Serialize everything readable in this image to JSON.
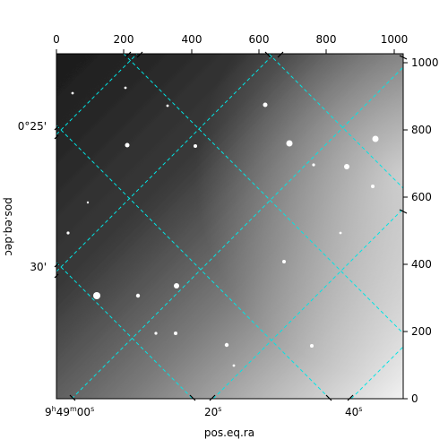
{
  "chart_data": {
    "type": "image",
    "xlabel": "pos.eq.ra",
    "ylabel": "pos.eq.dec",
    "pixel_axes": {
      "x_range": [
        0,
        1030
      ],
      "y_range": [
        0,
        1030
      ],
      "top_ticks": [
        0,
        200,
        400,
        600,
        800,
        1000
      ],
      "right_ticks": [
        0,
        200,
        400,
        600,
        800,
        1000
      ]
    },
    "world_ticks": {
      "bottom": [
        {
          "label_main": "9",
          "sup1": "h",
          "mid": "49",
          "sup2": "m",
          "end": "00",
          "sup3": "s"
        },
        {
          "label_main": "20",
          "sup1": "s",
          "mid": "",
          "sup2": "",
          "end": "",
          "sup3": ""
        },
        {
          "label_main": "40",
          "sup1": "s",
          "mid": "",
          "sup2": "",
          "end": "",
          "sup3": ""
        }
      ],
      "left": [
        "0°25'",
        "30'"
      ]
    },
    "grid": true,
    "grid_color": "#00e5e5",
    "frame_color": "#000000"
  }
}
